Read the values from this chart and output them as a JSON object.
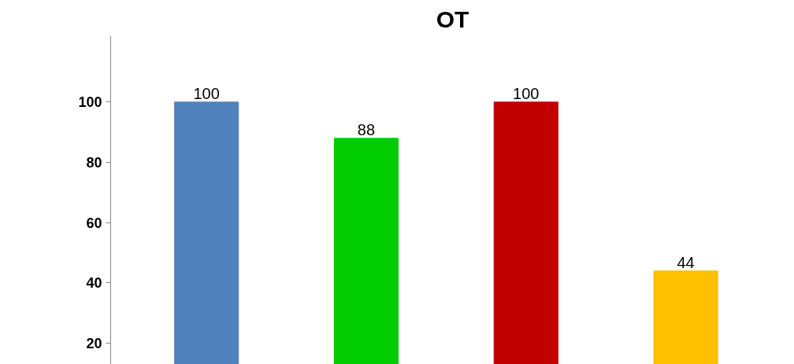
{
  "chart_data": {
    "type": "bar",
    "title": "OT",
    "categories": [
      null,
      null,
      null,
      null
    ],
    "values": [
      100,
      88,
      100,
      44
    ],
    "colors": [
      "#4f81bd",
      "#00cc00",
      "#c00000",
      "#ffc000"
    ],
    "ylim": [
      13,
      122
    ],
    "yticks": [
      20,
      40,
      60,
      80,
      100
    ],
    "data_labels": true,
    "grid": false,
    "tick_labels": "y"
  }
}
